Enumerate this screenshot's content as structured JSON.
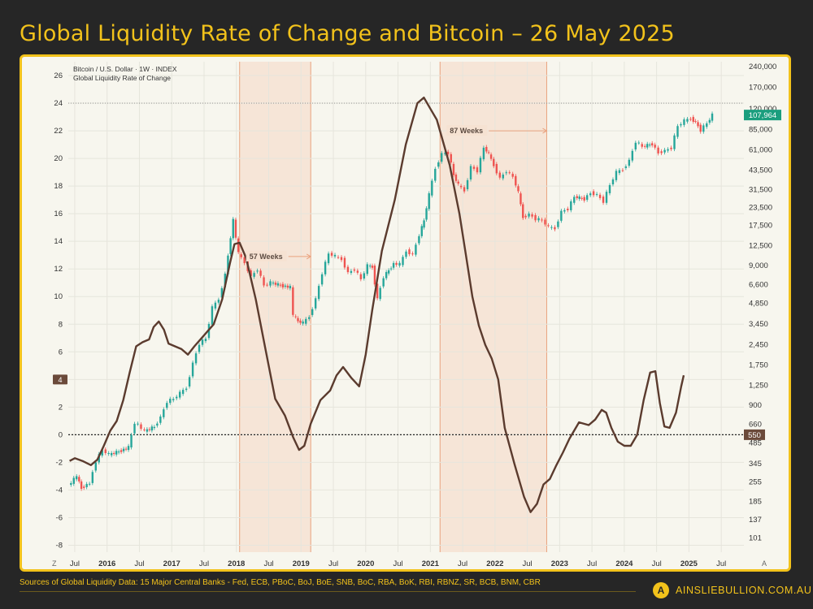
{
  "title": "Global Liquidity Rate of Change and Bitcoin – 26 May 2025",
  "chart_data": {
    "type": "line",
    "legend": [
      "Bitcoin / U.S. Dollar · 1W · INDEX",
      "Global Liquidity Rate of Change"
    ],
    "legend_position": "top-left",
    "x_range": [
      2015.4,
      2025.85
    ],
    "x_tick_labels": [
      {
        "x": 2015.5,
        "label": "Jul"
      },
      {
        "x": 2016.0,
        "label": "2016"
      },
      {
        "x": 2016.5,
        "label": "Jul"
      },
      {
        "x": 2017.0,
        "label": "2017"
      },
      {
        "x": 2017.5,
        "label": "Jul"
      },
      {
        "x": 2018.0,
        "label": "2018"
      },
      {
        "x": 2018.5,
        "label": "Jul"
      },
      {
        "x": 2019.0,
        "label": "2019"
      },
      {
        "x": 2019.5,
        "label": "Jul"
      },
      {
        "x": 2020.0,
        "label": "2020"
      },
      {
        "x": 2020.5,
        "label": "Jul"
      },
      {
        "x": 2021.0,
        "label": "2021"
      },
      {
        "x": 2021.5,
        "label": "Jul"
      },
      {
        "x": 2022.0,
        "label": "2022"
      },
      {
        "x": 2022.5,
        "label": "Jul"
      },
      {
        "x": 2023.0,
        "label": "2023"
      },
      {
        "x": 2023.5,
        "label": "Jul"
      },
      {
        "x": 2024.0,
        "label": "2024"
      },
      {
        "x": 2024.5,
        "label": "Jul"
      },
      {
        "x": 2025.0,
        "label": "2025"
      },
      {
        "x": 2025.5,
        "label": "Jul"
      }
    ],
    "left_axis": {
      "label": "Global Liquidity Rate of Change",
      "range": [
        -8.5,
        27
      ],
      "ticks": [
        -8,
        -6,
        -4,
        -2,
        0,
        2,
        4,
        6,
        8,
        10,
        12,
        14,
        16,
        18,
        20,
        22,
        24,
        26
      ],
      "current_value_label": "4",
      "current_value": 4
    },
    "right_axis": {
      "label": "Bitcoin / U.S. Dollar",
      "scale": "log",
      "range": [
        80,
        260000
      ],
      "ticks": [
        101,
        137,
        185,
        255,
        345,
        485,
        660,
        900,
        1250,
        1750,
        2450,
        3450,
        4850,
        6600,
        9000,
        12500,
        17500,
        23500,
        31500,
        43500,
        61000,
        85000,
        120000,
        170000,
        240000
      ],
      "current_price_label": "107,964",
      "zero_line_label": "550"
    },
    "series": [
      {
        "name": "Global Liquidity Rate of Change",
        "axis": "left",
        "color": "#5b3b2e",
        "points": [
          [
            2015.42,
            -1.9
          ],
          [
            2015.5,
            -1.7
          ],
          [
            2015.62,
            -1.9
          ],
          [
            2015.75,
            -2.2
          ],
          [
            2015.85,
            -1.8
          ],
          [
            2015.95,
            -0.8
          ],
          [
            2016.05,
            0.3
          ],
          [
            2016.15,
            1.0
          ],
          [
            2016.25,
            2.5
          ],
          [
            2016.35,
            4.5
          ],
          [
            2016.45,
            6.4
          ],
          [
            2016.55,
            6.7
          ],
          [
            2016.65,
            6.9
          ],
          [
            2016.72,
            7.8
          ],
          [
            2016.8,
            8.2
          ],
          [
            2016.88,
            7.6
          ],
          [
            2016.95,
            6.6
          ],
          [
            2017.05,
            6.4
          ],
          [
            2017.15,
            6.2
          ],
          [
            2017.25,
            5.8
          ],
          [
            2017.35,
            6.4
          ],
          [
            2017.5,
            7.2
          ],
          [
            2017.65,
            8.0
          ],
          [
            2017.78,
            9.8
          ],
          [
            2017.9,
            12.4
          ],
          [
            2017.97,
            13.8
          ],
          [
            2018.05,
            13.9
          ],
          [
            2018.15,
            12.8
          ],
          [
            2018.3,
            9.8
          ],
          [
            2018.45,
            6.2
          ],
          [
            2018.6,
            2.6
          ],
          [
            2018.75,
            1.4
          ],
          [
            2018.88,
            -0.2
          ],
          [
            2018.97,
            -1.1
          ],
          [
            2019.05,
            -0.8
          ],
          [
            2019.15,
            0.8
          ],
          [
            2019.3,
            2.5
          ],
          [
            2019.45,
            3.2
          ],
          [
            2019.55,
            4.3
          ],
          [
            2019.65,
            4.9
          ],
          [
            2019.78,
            4.1
          ],
          [
            2019.9,
            3.5
          ],
          [
            2020.0,
            5.8
          ],
          [
            2020.1,
            9.0
          ],
          [
            2020.25,
            13.3
          ],
          [
            2020.45,
            17.0
          ],
          [
            2020.62,
            21.0
          ],
          [
            2020.8,
            24.0
          ],
          [
            2020.9,
            24.4
          ],
          [
            2021.0,
            23.6
          ],
          [
            2021.1,
            22.8
          ],
          [
            2021.3,
            19.5
          ],
          [
            2021.45,
            16.0
          ],
          [
            2021.55,
            13.0
          ],
          [
            2021.65,
            10.0
          ],
          [
            2021.75,
            7.9
          ],
          [
            2021.85,
            6.5
          ],
          [
            2021.95,
            5.5
          ],
          [
            2022.05,
            4.0
          ],
          [
            2022.15,
            0.5
          ],
          [
            2022.3,
            -2.1
          ],
          [
            2022.45,
            -4.5
          ],
          [
            2022.55,
            -5.6
          ],
          [
            2022.65,
            -5.0
          ],
          [
            2022.75,
            -3.6
          ],
          [
            2022.85,
            -3.2
          ],
          [
            2022.95,
            -2.2
          ],
          [
            2023.05,
            -1.3
          ],
          [
            2023.15,
            -0.3
          ],
          [
            2023.3,
            0.9
          ],
          [
            2023.45,
            0.7
          ],
          [
            2023.55,
            1.1
          ],
          [
            2023.65,
            1.8
          ],
          [
            2023.72,
            1.6
          ],
          [
            2023.8,
            0.5
          ],
          [
            2023.9,
            -0.5
          ],
          [
            2024.0,
            -0.8
          ],
          [
            2024.1,
            -0.8
          ],
          [
            2024.2,
            0.0
          ],
          [
            2024.3,
            2.5
          ],
          [
            2024.4,
            4.5
          ],
          [
            2024.48,
            4.6
          ],
          [
            2024.55,
            2.3
          ],
          [
            2024.62,
            0.6
          ],
          [
            2024.7,
            0.5
          ],
          [
            2024.8,
            1.6
          ],
          [
            2024.88,
            3.5
          ],
          [
            2024.92,
            4.3
          ]
        ]
      },
      {
        "name": "Bitcoin / U.S. Dollar",
        "axis": "right",
        "style": "candlestick",
        "up_color": "#26a69a",
        "down_color": "#ef5350",
        "points": [
          [
            2015.42,
            240
          ],
          [
            2015.55,
            280
          ],
          [
            2015.62,
            230
          ],
          [
            2015.75,
            250
          ],
          [
            2015.85,
            360
          ],
          [
            2015.95,
            430
          ],
          [
            2016.05,
            400
          ],
          [
            2016.2,
            420
          ],
          [
            2016.35,
            450
          ],
          [
            2016.45,
            680
          ],
          [
            2016.5,
            650
          ],
          [
            2016.6,
            590
          ],
          [
            2016.75,
            630
          ],
          [
            2016.85,
            740
          ],
          [
            2016.95,
            960
          ],
          [
            2017.05,
            1000
          ],
          [
            2017.15,
            1100
          ],
          [
            2017.25,
            1200
          ],
          [
            2017.35,
            1800
          ],
          [
            2017.45,
            2500
          ],
          [
            2017.55,
            2700
          ],
          [
            2017.65,
            4500
          ],
          [
            2017.75,
            5200
          ],
          [
            2017.85,
            7800
          ],
          [
            2017.93,
            14500
          ],
          [
            2017.97,
            19000
          ],
          [
            2018.05,
            11000
          ],
          [
            2018.15,
            9500
          ],
          [
            2018.25,
            7500
          ],
          [
            2018.35,
            8500
          ],
          [
            2018.45,
            6500
          ],
          [
            2018.55,
            6800
          ],
          [
            2018.7,
            6500
          ],
          [
            2018.85,
            6300
          ],
          [
            2018.9,
            4000
          ],
          [
            2018.97,
            3600
          ],
          [
            2019.05,
            3500
          ],
          [
            2019.15,
            3900
          ],
          [
            2019.25,
            5200
          ],
          [
            2019.35,
            8000
          ],
          [
            2019.45,
            11000
          ],
          [
            2019.55,
            10500
          ],
          [
            2019.65,
            10000
          ],
          [
            2019.75,
            8000
          ],
          [
            2019.85,
            8500
          ],
          [
            2019.95,
            7200
          ],
          [
            2020.05,
            9000
          ],
          [
            2020.12,
            8800
          ],
          [
            2020.2,
            5200
          ],
          [
            2020.3,
            7500
          ],
          [
            2020.45,
            9300
          ],
          [
            2020.55,
            9200
          ],
          [
            2020.65,
            11500
          ],
          [
            2020.75,
            10800
          ],
          [
            2020.85,
            15000
          ],
          [
            2020.92,
            19000
          ],
          [
            2021.0,
            29000
          ],
          [
            2021.1,
            45000
          ],
          [
            2021.2,
            57000
          ],
          [
            2021.3,
            58000
          ],
          [
            2021.38,
            40000
          ],
          [
            2021.45,
            34000
          ],
          [
            2021.55,
            31000
          ],
          [
            2021.65,
            46000
          ],
          [
            2021.75,
            43000
          ],
          [
            2021.85,
            63000
          ],
          [
            2021.92,
            57000
          ],
          [
            2022.0,
            47000
          ],
          [
            2022.1,
            38000
          ],
          [
            2022.2,
            43000
          ],
          [
            2022.3,
            39000
          ],
          [
            2022.38,
            30000
          ],
          [
            2022.45,
            20000
          ],
          [
            2022.55,
            21000
          ],
          [
            2022.65,
            19500
          ],
          [
            2022.75,
            19000
          ],
          [
            2022.85,
            17000
          ],
          [
            2022.95,
            16600
          ],
          [
            2023.05,
            22000
          ],
          [
            2023.15,
            23000
          ],
          [
            2023.25,
            28000
          ],
          [
            2023.4,
            27000
          ],
          [
            2023.5,
            30000
          ],
          [
            2023.6,
            29000
          ],
          [
            2023.7,
            26000
          ],
          [
            2023.8,
            34000
          ],
          [
            2023.9,
            42000
          ],
          [
            2024.0,
            44000
          ],
          [
            2024.1,
            51000
          ],
          [
            2024.2,
            70000
          ],
          [
            2024.3,
            64000
          ],
          [
            2024.45,
            67000
          ],
          [
            2024.55,
            58000
          ],
          [
            2024.65,
            60000
          ],
          [
            2024.75,
            63000
          ],
          [
            2024.85,
            90000
          ],
          [
            2024.95,
            98000
          ],
          [
            2025.05,
            102000
          ],
          [
            2025.12,
            96000
          ],
          [
            2025.2,
            84000
          ],
          [
            2025.3,
            94000
          ],
          [
            2025.38,
            107964
          ]
        ]
      }
    ],
    "shaded_periods": [
      {
        "start": 2018.05,
        "end": 2019.15
      },
      {
        "start": 2021.15,
        "end": 2022.8
      }
    ],
    "annotations": [
      {
        "text": "57 Weeks",
        "from": 2018.05,
        "to": 2019.15,
        "y": 12.9
      },
      {
        "text": "87 Weeks",
        "from": 2021.15,
        "to": 2022.8,
        "y": 22.0
      }
    ],
    "reference_lines": [
      {
        "axis": "left",
        "value": 0,
        "style": "dotted"
      },
      {
        "axis": "left",
        "value": 24,
        "style": "dotted"
      }
    ],
    "grid": true,
    "corner_labels": {
      "bottom_left": "Z",
      "bottom_right": "A"
    }
  },
  "footer": {
    "sources": "Sources of Global Liquidity Data: 15 Major Central Banks - Fed, ECB, PBoC, BoJ, BoE, SNB, BoC, RBA, BoK, RBI, RBNZ, SR, BCB, BNM, CBR",
    "brand": "AINSLIEBULLION.COM.AU",
    "brand_logo_letter": "A"
  }
}
